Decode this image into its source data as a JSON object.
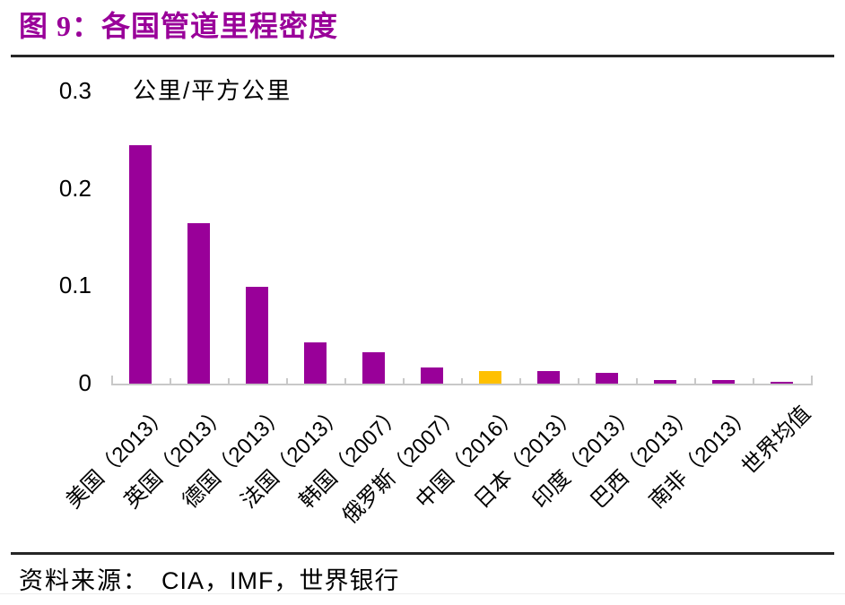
{
  "header": {
    "title": "图 9：各国管道里程密度"
  },
  "chart_data": {
    "type": "bar",
    "title": "各国管道里程密度",
    "unit_label": "公里/平方公里",
    "categories": [
      "美国（2013）",
      "英国（2013）",
      "德国（2013）",
      "法国（2013）",
      "韩国（2007）",
      "俄罗斯（2007）",
      "中国（2016）",
      "日本（2013）",
      "印度（2013）",
      "巴西（2013）",
      "南非（2013）",
      "世界均值"
    ],
    "values": [
      0.245,
      0.165,
      0.099,
      0.042,
      0.032,
      0.017,
      0.013,
      0.013,
      0.011,
      0.004,
      0.004,
      0.002
    ],
    "xlabel": "",
    "ylabel": "公里/平方公里",
    "ylim": [
      0,
      0.3
    ],
    "yticks": [
      0,
      0.1,
      0.2,
      0.3
    ],
    "ytick_labels": [
      "0",
      "0.1",
      "0.2",
      "0.3"
    ],
    "grid": false,
    "legend_position": "none",
    "bar_color": "#990099",
    "highlight_color": "#FFC000",
    "highlight_index": 6,
    "axis_color": "#C8C8C8",
    "label_rotation_deg": 45
  },
  "footer": {
    "source_prefix": "资料来源：",
    "source_text": "CIA，IMF，世界银行"
  },
  "colors": {
    "title": "#990099",
    "rule": "#262626",
    "text": "#000000"
  }
}
